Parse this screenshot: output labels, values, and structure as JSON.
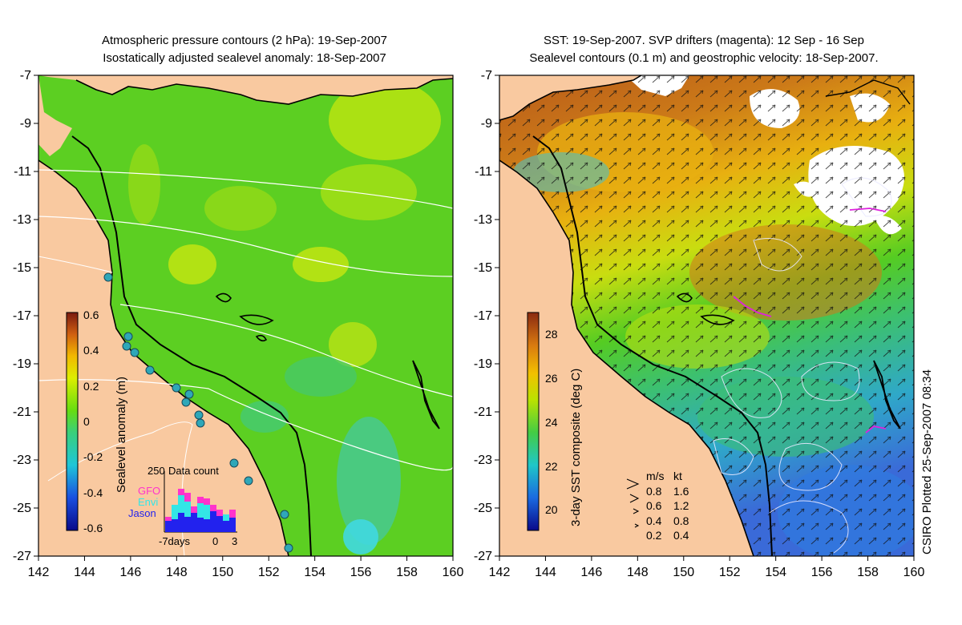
{
  "left_panel": {
    "title_line1": "Atmospheric pressure contours (2 hPa): 19-Sep-2007",
    "title_line2": "Isostatically adjusted sealevel anomaly: 18-Sep-2007",
    "colorbar_label": "Sealevel anomaly (m)",
    "colorbar_ticks": [
      "0.6",
      "0.4",
      "0.2",
      "0",
      "-0.2",
      "-0.4",
      "-0.6"
    ],
    "inset": {
      "title": "Data count",
      "ymax_label": "250",
      "legend": [
        {
          "name": "GFO",
          "color": "#ff33cc"
        },
        {
          "name": "Envi",
          "color": "#33e6e6"
        },
        {
          "name": "Jason",
          "color": "#2222ee"
        }
      ],
      "x_labels": [
        "-7days",
        "0",
        "3"
      ]
    }
  },
  "right_panel": {
    "title_line1": "SST: 19-Sep-2007. SVP drifters (magenta): 12 Sep - 16 Sep",
    "title_line2": "Sealevel contours (0.1 m) and geostrophic velocity: 18-Sep-2007.",
    "colorbar_label": "3-day SST composite (deg C)",
    "colorbar_ticks": [
      "28",
      "26",
      "24",
      "22",
      "20"
    ],
    "velocity_legend": {
      "header_ms": "m/s",
      "header_kt": "kt",
      "rows": [
        {
          "ms": "0.8",
          "kt": "1.6"
        },
        {
          "ms": "0.6",
          "kt": "1.2"
        },
        {
          "ms": "0.4",
          "kt": "0.8"
        },
        {
          "ms": "0.2",
          "kt": "0.4"
        }
      ]
    }
  },
  "axes": {
    "x_ticks": [
      "142",
      "144",
      "146",
      "148",
      "150",
      "152",
      "154",
      "156",
      "158",
      "160"
    ],
    "y_ticks": [
      "-7",
      "-9",
      "-11",
      "-13",
      "-15",
      "-17",
      "-19",
      "-21",
      "-23",
      "-25",
      "-27"
    ]
  },
  "credit": "CSIRO Plotted 25-Sep-2007 08:34",
  "colors": {
    "land": "#f9c9a0",
    "ocean_green": "#55cc22",
    "sst_warm": "#b85a1a",
    "coast": "#000000"
  }
}
